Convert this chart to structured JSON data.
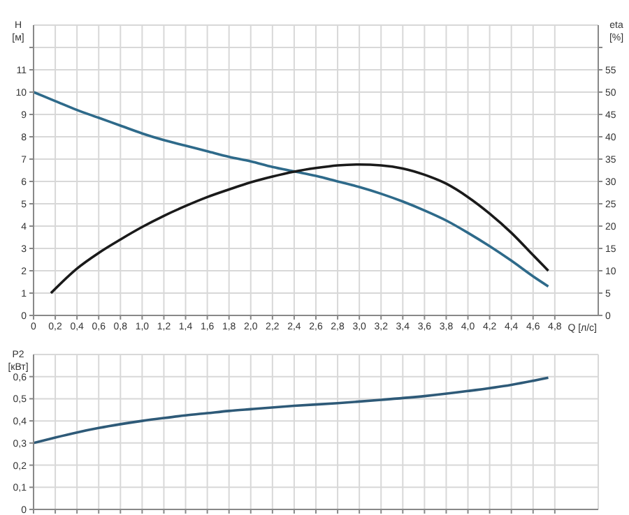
{
  "chart_data": [
    {
      "type": "line",
      "xlabel": "Q [л/с]",
      "ylabel": "H\n[м]",
      "y2label": "eta\n[%]",
      "grid": true,
      "xlim": [
        0,
        5.2
      ],
      "xticks": [
        0,
        {
          "value": 0.2,
          "label": "0,2"
        },
        {
          "value": 0.4,
          "label": "0,4"
        },
        {
          "value": 0.6,
          "label": "0,6"
        },
        {
          "value": 0.8,
          "label": "0,8"
        },
        {
          "value": 1,
          "label": "1,0"
        },
        {
          "value": 1.2,
          "label": "1,2"
        },
        {
          "value": 1.4,
          "label": "1,4"
        },
        {
          "value": 1.6,
          "label": "1,6"
        },
        {
          "value": 1.8,
          "label": "1,8"
        },
        {
          "value": 2,
          "label": "2,0"
        },
        {
          "value": 2.2,
          "label": "2,2"
        },
        {
          "value": 2.4,
          "label": "2,4"
        },
        {
          "value": 2.6,
          "label": "2,6"
        },
        {
          "value": 2.8,
          "label": "2,8"
        },
        {
          "value": 3,
          "label": "3,0"
        },
        {
          "value": 3.2,
          "label": "3,2"
        },
        {
          "value": 3.4,
          "label": "3,4"
        },
        {
          "value": 3.6,
          "label": "3,6"
        },
        {
          "value": 3.8,
          "label": "3,8"
        },
        {
          "value": 4,
          "label": "4,0"
        },
        {
          "value": 4.2,
          "label": "4,2"
        },
        {
          "value": 4.4,
          "label": "4,4"
        },
        {
          "value": 4.6,
          "label": "4,6"
        },
        {
          "value": 4.8,
          "label": "4,8"
        }
      ],
      "ylim": [
        0,
        13
      ],
      "yticks": [
        0,
        1,
        2,
        3,
        4,
        5,
        6,
        7,
        8,
        9,
        10,
        11,
        {
          "value": 12,
          "label": null
        }
      ],
      "y2lim": [
        0,
        65
      ],
      "y2ticks": [
        0,
        5,
        10,
        15,
        20,
        25,
        30,
        35,
        40,
        45,
        50,
        55,
        {
          "value": 60,
          "label": null
        }
      ],
      "series": [
        {
          "color": "#2e6a8a",
          "x": [
            0,
            0.2,
            0.4,
            0.6,
            0.8,
            1.0,
            1.2,
            1.4,
            1.6,
            1.8,
            2.0,
            2.2,
            2.4,
            2.6,
            2.8,
            3.0,
            3.2,
            3.4,
            3.6,
            3.8,
            4.0,
            4.2,
            4.4,
            4.6,
            4.74
          ],
          "values": [
            10,
            9.6,
            9.2,
            8.85,
            8.5,
            8.15,
            7.85,
            7.6,
            7.35,
            7.1,
            6.9,
            6.65,
            6.45,
            6.25,
            6.0,
            5.75,
            5.45,
            5.1,
            4.7,
            4.25,
            3.7,
            3.1,
            2.45,
            1.75,
            1.3
          ]
        },
        {
          "color": "#1a1a1a",
          "axis": "y2",
          "x": [
            0.16,
            0.4,
            0.6,
            0.8,
            1.0,
            1.2,
            1.4,
            1.6,
            1.8,
            2.0,
            2.2,
            2.4,
            2.6,
            2.8,
            3.0,
            3.2,
            3.4,
            3.6,
            3.8,
            4.0,
            4.2,
            4.4,
            4.6,
            4.74
          ],
          "values": [
            5,
            10.5,
            14,
            17,
            19.8,
            22.3,
            24.5,
            26.5,
            28.2,
            29.8,
            31.1,
            32.2,
            33,
            33.6,
            33.8,
            33.6,
            32.9,
            31.5,
            29.5,
            26.5,
            22.8,
            18.5,
            13.5,
            10
          ]
        }
      ]
    },
    {
      "type": "line",
      "ylabel": "P2\n[кВт]",
      "grid": true,
      "tick_labels": "y",
      "xlim": [
        0,
        5.2
      ],
      "xticks": [
        0,
        0.2,
        0.4,
        0.6,
        0.8,
        1,
        1.2,
        1.4,
        1.6,
        1.8,
        2,
        2.2,
        2.4,
        2.6,
        2.8,
        3,
        3.2,
        3.4,
        3.6,
        3.8,
        4,
        4.2,
        4.4,
        4.6,
        4.8
      ],
      "ylim": [
        0,
        0.7
      ],
      "yticks": [
        0,
        {
          "value": 0.1,
          "label": "0,1"
        },
        {
          "value": 0.2,
          "label": "0,2"
        },
        {
          "value": 0.3,
          "label": "0,3"
        },
        {
          "value": 0.4,
          "label": "0,4"
        },
        {
          "value": 0.5,
          "label": "0,5"
        },
        {
          "value": 0.6,
          "label": "0,6"
        }
      ],
      "series": [
        {
          "color": "#2e5a78",
          "x": [
            0,
            0.2,
            0.4,
            0.6,
            0.8,
            1.0,
            1.2,
            1.4,
            1.6,
            1.8,
            2.0,
            2.4,
            2.8,
            3.2,
            3.6,
            4.0,
            4.4,
            4.74
          ],
          "values": [
            0.3,
            0.325,
            0.348,
            0.368,
            0.385,
            0.4,
            0.413,
            0.425,
            0.435,
            0.445,
            0.453,
            0.468,
            0.48,
            0.495,
            0.512,
            0.535,
            0.563,
            0.595
          ]
        }
      ]
    }
  ]
}
